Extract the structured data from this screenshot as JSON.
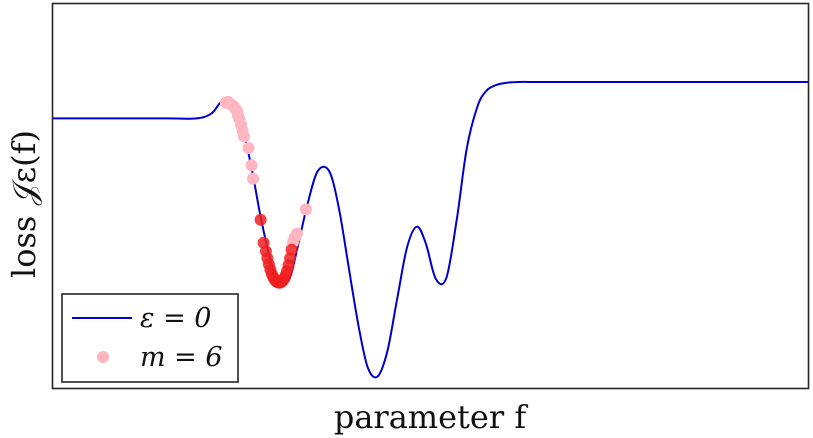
{
  "chart_data": {
    "type": "line",
    "title": "",
    "xlabel": "parameter f",
    "ylabel": "loss 𝒥ε(f)",
    "xlim": [
      0,
      1
    ],
    "ylim": [
      0,
      1
    ],
    "grid": false,
    "legend_placement": "bottom-left",
    "series": [
      {
        "name": "ε = 0",
        "kind": "line",
        "color": "#0000cc",
        "x": [
          0.0,
          0.15,
          0.19,
          0.21,
          0.223,
          0.236,
          0.249,
          0.262,
          0.275,
          0.288,
          0.3,
          0.313,
          0.325,
          0.338,
          0.351,
          0.366,
          0.379,
          0.392,
          0.405,
          0.417,
          0.43,
          0.443,
          0.456,
          0.469,
          0.482,
          0.494,
          0.507,
          0.521,
          0.535,
          0.548,
          0.562,
          0.574,
          0.587,
          0.601,
          0.617,
          0.64,
          0.68,
          0.75,
          1.0
        ],
        "y": [
          0.702,
          0.702,
          0.702,
          0.715,
          0.745,
          0.743,
          0.69,
          0.583,
          0.446,
          0.334,
          0.274,
          0.283,
          0.376,
          0.486,
          0.566,
          0.564,
          0.465,
          0.31,
          0.158,
          0.053,
          0.03,
          0.097,
          0.234,
          0.367,
          0.42,
          0.375,
          0.284,
          0.287,
          0.441,
          0.623,
          0.732,
          0.774,
          0.789,
          0.795,
          0.797,
          0.797,
          0.797,
          0.797,
          0.797
        ]
      },
      {
        "name": "m = 6",
        "kind": "scatter",
        "color": "#ffb6c1",
        "x": [
          0.229,
          0.232,
          0.235,
          0.238,
          0.24,
          0.242,
          0.244,
          0.245,
          0.247,
          0.249,
          0.251,
          0.253,
          0.259,
          0.263,
          0.265,
          0.318,
          0.32,
          0.323,
          0.335
        ],
        "y": [
          0.743,
          0.745,
          0.74,
          0.736,
          0.731,
          0.726,
          0.72,
          0.71,
          0.7,
          0.685,
          0.67,
          0.655,
          0.625,
          0.58,
          0.545,
          0.38,
          0.392,
          0.402,
          0.465
        ]
      },
      {
        "name": "",
        "kind": "scatter",
        "color": "#f02020",
        "x": [
          0.275,
          0.279,
          0.282,
          0.284,
          0.286,
          0.288,
          0.29,
          0.292,
          0.294,
          0.296,
          0.298,
          0.3,
          0.302,
          0.304,
          0.306,
          0.308,
          0.31,
          0.312,
          0.314,
          0.316,
          0.301,
          0.299,
          0.297,
          0.303
        ],
        "y": [
          0.438,
          0.378,
          0.356,
          0.338,
          0.322,
          0.308,
          0.296,
          0.287,
          0.281,
          0.277,
          0.275,
          0.274,
          0.276,
          0.279,
          0.285,
          0.293,
          0.305,
          0.32,
          0.338,
          0.36,
          0.275,
          0.276,
          0.279,
          0.277
        ]
      }
    ],
    "legend": {
      "entries": [
        {
          "label": "ε = 0",
          "symbol": "line",
          "color": "#0000cc"
        },
        {
          "label": "m = 6",
          "symbol": "dot",
          "color": "#ffb6c1"
        }
      ]
    }
  }
}
